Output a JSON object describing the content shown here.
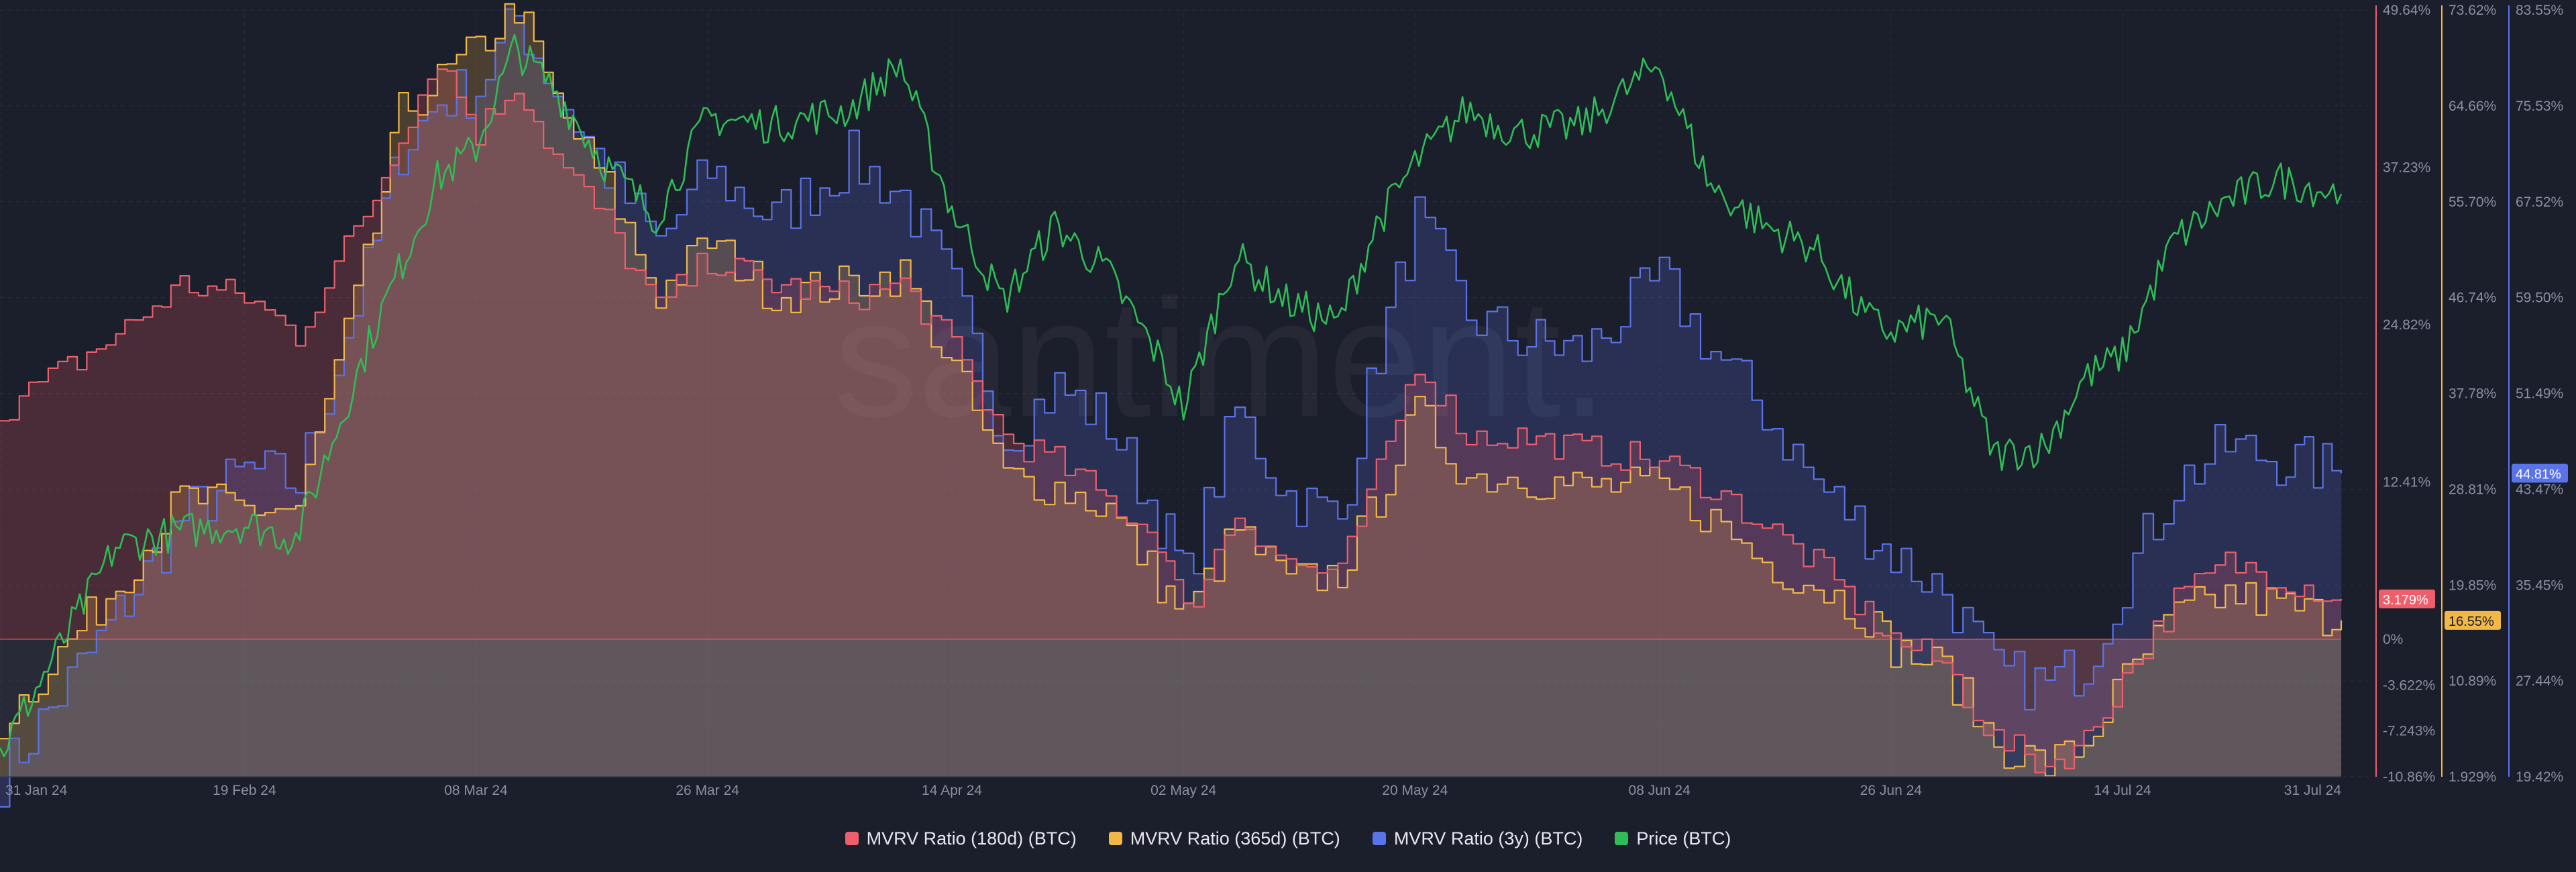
{
  "chart_data": {
    "type": "area",
    "watermark": "santiment.",
    "x_ticks": [
      "31 Jan 24",
      "19 Feb 24",
      "08 Mar 24",
      "26 Mar 24",
      "14 Apr 24",
      "02 May 24",
      "20 May 24",
      "08 Jun 24",
      "26 Jun 24",
      "14 Jul 24",
      "31 Jul 24"
    ],
    "axes": [
      {
        "key": "mvrv180",
        "color": "#ef5f6b",
        "ticks": [
          "49.64%",
          "37.23%",
          "24.82%",
          "12.41%",
          "0%",
          "-3.622%",
          "-7.243%",
          "-10.86%"
        ]
      },
      {
        "key": "mvrv365",
        "color": "#f2b847",
        "ticks": [
          "73.62%",
          "64.66%",
          "55.70%",
          "46.74%",
          "37.78%",
          "28.81%",
          "19.85%",
          "10.89%",
          "1.929%"
        ]
      },
      {
        "key": "mvrv3y",
        "color": "#5b73e8",
        "ticks": [
          "83.55%",
          "75.53%",
          "67.52%",
          "59.50%",
          "51.49%",
          "43.47%",
          "35.45%",
          "27.44%",
          "19.42%"
        ]
      }
    ],
    "current_labels": [
      {
        "series": "mvrv180",
        "text": "3.179%",
        "bg": "#ef5f6b",
        "fg": "#ffffff"
      },
      {
        "series": "mvrv365",
        "text": "16.55%",
        "bg": "#f2b847",
        "fg": "#1b1e2b"
      },
      {
        "series": "mvrv3y",
        "text": "44.81%",
        "bg": "#5b73e8",
        "fg": "#ffffff"
      }
    ],
    "series": [
      {
        "name": "MVRV Ratio (180d) (BTC)",
        "color": "#ef5f6b",
        "points": [
          [
            "31 Jan 24",
            18
          ],
          [
            "09 Feb 24",
            24
          ],
          [
            "14 Feb 24",
            28
          ],
          [
            "19 Feb 24",
            27
          ],
          [
            "23 Feb 24",
            24
          ],
          [
            "29 Feb 24",
            35
          ],
          [
            "02 Mar 24",
            40
          ],
          [
            "05 Mar 24",
            46
          ],
          [
            "08 Mar 24",
            40
          ],
          [
            "11 Mar 24",
            44
          ],
          [
            "14 Mar 24",
            38
          ],
          [
            "18 Mar 24",
            33
          ],
          [
            "22 Mar 24",
            26
          ],
          [
            "26 Mar 24",
            30
          ],
          [
            "31 Mar 24",
            28
          ],
          [
            "06 Apr 24",
            27
          ],
          [
            "10 Apr 24",
            28
          ],
          [
            "14 Apr 24",
            23
          ],
          [
            "18 Apr 24",
            16
          ],
          [
            "22 Apr 24",
            14
          ],
          [
            "26 Apr 24",
            11
          ],
          [
            "30 Apr 24",
            8
          ],
          [
            "02 May 24",
            2
          ],
          [
            "06 May 24",
            10
          ],
          [
            "10 May 24",
            6
          ],
          [
            "14 May 24",
            5
          ],
          [
            "17 May 24",
            13
          ],
          [
            "20 May 24",
            22
          ],
          [
            "24 May 24",
            16
          ],
          [
            "28 May 24",
            16
          ],
          [
            "02 Jun 24",
            15
          ],
          [
            "08 Jun 24",
            14
          ],
          [
            "12 Jun 24",
            12
          ],
          [
            "16 Jun 24",
            9
          ],
          [
            "20 Jun 24",
            6
          ],
          [
            "24 Jun 24",
            2
          ],
          [
            "26 Jun 24",
            0
          ],
          [
            "30 Jun 24",
            -2
          ],
          [
            "04 Jul 24",
            -8
          ],
          [
            "08 Jul 24",
            -10
          ],
          [
            "11 Jul 24",
            -8
          ],
          [
            "14 Jul 24",
            -3
          ],
          [
            "18 Jul 24",
            3
          ],
          [
            "22 Jul 24",
            6
          ],
          [
            "26 Jul 24",
            5
          ],
          [
            "31 Jul 24",
            3.179
          ]
        ]
      },
      {
        "name": "MVRV Ratio (365d) (BTC)",
        "color": "#f2b847",
        "points": [
          [
            "31 Jan 24",
            7
          ],
          [
            "09 Feb 24",
            20
          ],
          [
            "14 Feb 24",
            28
          ],
          [
            "19 Feb 24",
            27
          ],
          [
            "23 Feb 24",
            27
          ],
          [
            "29 Feb 24",
            53
          ],
          [
            "02 Mar 24",
            64
          ],
          [
            "05 Mar 24",
            67
          ],
          [
            "08 Mar 24",
            70
          ],
          [
            "11 Mar 24",
            74
          ],
          [
            "14 Mar 24",
            65
          ],
          [
            "18 Mar 24",
            57
          ],
          [
            "22 Mar 24",
            47
          ],
          [
            "26 Mar 24",
            52
          ],
          [
            "31 Mar 24",
            47
          ],
          [
            "06 Apr 24",
            48
          ],
          [
            "10 Apr 24",
            49
          ],
          [
            "14 Apr 24",
            40
          ],
          [
            "18 Apr 24",
            30
          ],
          [
            "22 Apr 24",
            29
          ],
          [
            "26 Apr 24",
            27
          ],
          [
            "30 Apr 24",
            20
          ],
          [
            "02 May 24",
            17
          ],
          [
            "06 May 24",
            25
          ],
          [
            "10 May 24",
            20
          ],
          [
            "14 May 24",
            21
          ],
          [
            "17 May 24",
            28
          ],
          [
            "20 May 24",
            36
          ],
          [
            "24 May 24",
            30
          ],
          [
            "28 May 24",
            30
          ],
          [
            "02 Jun 24",
            29
          ],
          [
            "08 Jun 24",
            29
          ],
          [
            "12 Jun 24",
            26
          ],
          [
            "16 Jun 24",
            22
          ],
          [
            "20 Jun 24",
            20
          ],
          [
            "24 Jun 24",
            17
          ],
          [
            "26 Jun 24",
            14
          ],
          [
            "30 Jun 24",
            12
          ],
          [
            "04 Jul 24",
            5
          ],
          [
            "08 Jul 24",
            3
          ],
          [
            "11 Jul 24",
            5
          ],
          [
            "14 Jul 24",
            11
          ],
          [
            "18 Jul 24",
            17
          ],
          [
            "22 Jul 24",
            19
          ],
          [
            "26 Jul 24",
            18
          ],
          [
            "31 Jul 24",
            16.55
          ]
        ]
      },
      {
        "name": "MVRV Ratio (3y) (BTC)",
        "color": "#5b73e8",
        "points": [
          [
            "31 Jan 24",
            19.4
          ],
          [
            "09 Feb 24",
            33
          ],
          [
            "14 Feb 24",
            41
          ],
          [
            "19 Feb 24",
            45
          ],
          [
            "23 Feb 24",
            44
          ],
          [
            "29 Feb 24",
            64
          ],
          [
            "02 Mar 24",
            72
          ],
          [
            "05 Mar 24",
            76
          ],
          [
            "08 Mar 24",
            77
          ],
          [
            "11 Mar 24",
            83
          ],
          [
            "14 Mar 24",
            77
          ],
          [
            "18 Mar 24",
            70
          ],
          [
            "22 Mar 24",
            64
          ],
          [
            "26 Mar 24",
            70
          ],
          [
            "31 Mar 24",
            66
          ],
          [
            "06 Apr 24",
            71
          ],
          [
            "10 Apr 24",
            68
          ],
          [
            "14 Apr 24",
            60
          ],
          [
            "18 Apr 24",
            48
          ],
          [
            "22 Apr 24",
            52
          ],
          [
            "26 Apr 24",
            49
          ],
          [
            "30 Apr 24",
            41
          ],
          [
            "02 May 24",
            36
          ],
          [
            "06 May 24",
            50
          ],
          [
            "10 May 24",
            43
          ],
          [
            "14 May 24",
            41
          ],
          [
            "17 May 24",
            55
          ],
          [
            "20 May 24",
            66
          ],
          [
            "24 May 24",
            58
          ],
          [
            "28 May 24",
            56
          ],
          [
            "02 Jun 24",
            55
          ],
          [
            "08 Jun 24",
            61
          ],
          [
            "12 Jun 24",
            55
          ],
          [
            "16 Jun 24",
            50
          ],
          [
            "20 Jun 24",
            44
          ],
          [
            "24 Jun 24",
            40
          ],
          [
            "26 Jun 24",
            38
          ],
          [
            "30 Jun 24",
            35
          ],
          [
            "04 Jul 24",
            28
          ],
          [
            "08 Jul 24",
            27
          ],
          [
            "11 Jul 24",
            29
          ],
          [
            "14 Jul 24",
            36
          ],
          [
            "18 Jul 24",
            44
          ],
          [
            "22 Jul 24",
            47
          ],
          [
            "26 Jul 24",
            46
          ],
          [
            "31 Jul 24",
            44.81
          ]
        ]
      },
      {
        "name": "Price (BTC)",
        "color": "#2fbd56",
        "points": [
          [
            "31 Jan 24",
            0.03
          ],
          [
            "09 Feb 24",
            0.3
          ],
          [
            "14 Feb 24",
            0.32
          ],
          [
            "19 Feb 24",
            0.33
          ],
          [
            "23 Feb 24",
            0.31
          ],
          [
            "29 Feb 24",
            0.58
          ],
          [
            "02 Mar 24",
            0.66
          ],
          [
            "05 Mar 24",
            0.78
          ],
          [
            "08 Mar 24",
            0.82
          ],
          [
            "11 Mar 24",
            0.95
          ],
          [
            "14 Mar 24",
            0.9
          ],
          [
            "18 Mar 24",
            0.8
          ],
          [
            "22 Mar 24",
            0.73
          ],
          [
            "26 Mar 24",
            0.86
          ],
          [
            "31 Mar 24",
            0.85
          ],
          [
            "06 Apr 24",
            0.87
          ],
          [
            "10 Apr 24",
            0.93
          ],
          [
            "14 Apr 24",
            0.74
          ],
          [
            "18 Apr 24",
            0.62
          ],
          [
            "22 Apr 24",
            0.72
          ],
          [
            "26 Apr 24",
            0.66
          ],
          [
            "30 Apr 24",
            0.55
          ],
          [
            "02 May 24",
            0.48
          ],
          [
            "06 May 24",
            0.68
          ],
          [
            "10 May 24",
            0.62
          ],
          [
            "14 May 24",
            0.59
          ],
          [
            "17 May 24",
            0.72
          ],
          [
            "20 May 24",
            0.8
          ],
          [
            "24 May 24",
            0.87
          ],
          [
            "28 May 24",
            0.84
          ],
          [
            "02 Jun 24",
            0.85
          ],
          [
            "08 Jun 24",
            0.93
          ],
          [
            "12 Jun 24",
            0.77
          ],
          [
            "16 Jun 24",
            0.72
          ],
          [
            "20 Jun 24",
            0.69
          ],
          [
            "24 Jun 24",
            0.6
          ],
          [
            "26 Jun 24",
            0.58
          ],
          [
            "30 Jun 24",
            0.6
          ],
          [
            "04 Jul 24",
            0.42
          ],
          [
            "08 Jul 24",
            0.43
          ],
          [
            "11 Jul 24",
            0.52
          ],
          [
            "14 Jul 24",
            0.55
          ],
          [
            "18 Jul 24",
            0.7
          ],
          [
            "22 Jul 24",
            0.75
          ],
          [
            "26 Jul 24",
            0.78
          ],
          [
            "31 Jul 24",
            0.76
          ]
        ]
      }
    ],
    "legend": [
      {
        "label": "MVRV Ratio (180d) (BTC)",
        "color": "#ef5f6b"
      },
      {
        "label": "MVRV Ratio (365d) (BTC)",
        "color": "#f2b847"
      },
      {
        "label": "MVRV Ratio (3y) (BTC)",
        "color": "#5b73e8"
      },
      {
        "label": "Price (BTC)",
        "color": "#2fbd56"
      }
    ],
    "grid": true,
    "legend_position": "bottom",
    "baseline": "0%"
  }
}
